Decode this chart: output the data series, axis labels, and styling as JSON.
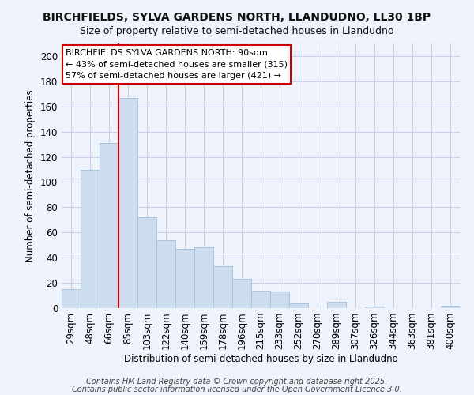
{
  "title1": "BIRCHFIELDS, SYLVA GARDENS NORTH, LLANDUDNO, LL30 1BP",
  "title2": "Size of property relative to semi-detached houses in Llandudno",
  "xlabel": "Distribution of semi-detached houses by size in Llandudno",
  "ylabel": "Number of semi-detached properties",
  "categories": [
    "29sqm",
    "48sqm",
    "66sqm",
    "85sqm",
    "103sqm",
    "122sqm",
    "140sqm",
    "159sqm",
    "178sqm",
    "196sqm",
    "215sqm",
    "233sqm",
    "252sqm",
    "270sqm",
    "289sqm",
    "307sqm",
    "326sqm",
    "344sqm",
    "363sqm",
    "381sqm",
    "400sqm"
  ],
  "values": [
    15,
    110,
    131,
    167,
    72,
    54,
    47,
    48,
    33,
    23,
    14,
    13,
    4,
    0,
    5,
    0,
    1,
    0,
    0,
    0,
    2
  ],
  "bar_color": "#ccddf0",
  "bar_edge_color": "#aac4de",
  "highlight_index": 3,
  "highlight_line_color": "#cc0000",
  "annotation_text": "BIRCHFIELDS SYLVA GARDENS NORTH: 90sqm\n← 43% of semi-detached houses are smaller (315)\n57% of semi-detached houses are larger (421) →",
  "annotation_box_color": "#ffffff",
  "annotation_box_edge": "#cc0000",
  "footer_line1": "Contains HM Land Registry data © Crown copyright and database right 2025.",
  "footer_line2": "Contains public sector information licensed under the Open Government Licence 3.0.",
  "ylim": [
    0,
    210
  ],
  "yticks": [
    0,
    20,
    40,
    60,
    80,
    100,
    120,
    140,
    160,
    180,
    200
  ],
  "background_color": "#eef2fa",
  "grid_color": "#c8cfe8",
  "title1_fontsize": 10,
  "title2_fontsize": 9
}
